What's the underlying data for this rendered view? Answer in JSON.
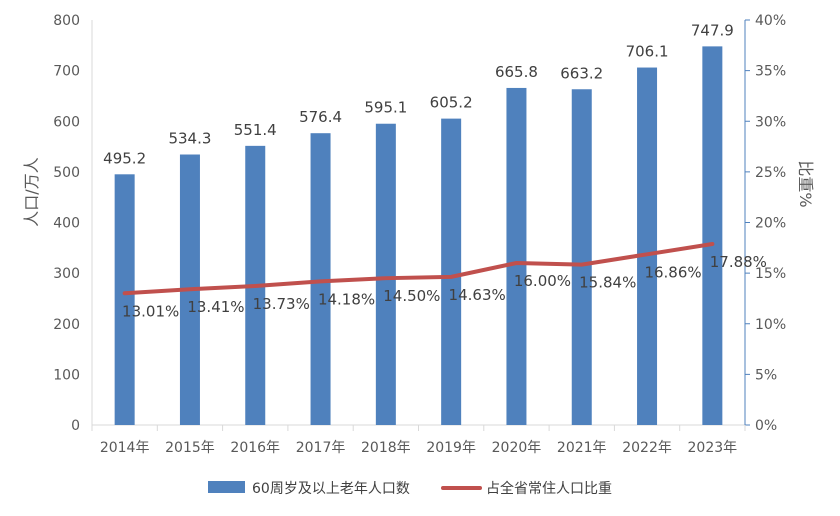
{
  "chart_data": {
    "type": "bar",
    "categories": [
      "2014年",
      "2015年",
      "2016年",
      "2017年",
      "2018年",
      "2019年",
      "2020年",
      "2021年",
      "2022年",
      "2023年"
    ],
    "series": [
      {
        "name": "60周岁及以上老年人口数",
        "type": "bar",
        "axis": "left",
        "color": "#4F81BD",
        "values": [
          495.2,
          534.3,
          551.4,
          576.4,
          595.1,
          605.2,
          665.8,
          663.2,
          706.1,
          747.9
        ],
        "labels": [
          "495.2",
          "534.3",
          "551.4",
          "576.4",
          "595.1",
          "605.2",
          "665.8",
          "663.2",
          "706.1",
          "747.9"
        ]
      },
      {
        "name": "占全省常住人口比重",
        "type": "line",
        "axis": "right",
        "color": "#C0504D",
        "values": [
          13.01,
          13.41,
          13.73,
          14.18,
          14.5,
          14.63,
          16.0,
          15.84,
          16.86,
          17.88
        ],
        "labels": [
          "13.01%",
          "13.41%",
          "13.73%",
          "14.18%",
          "14.50%",
          "14.63%",
          "16.00%",
          "15.84%",
          "16.86%",
          "17.88%"
        ]
      }
    ],
    "left_axis": {
      "label": "人口/万人",
      "ylim": [
        0,
        800
      ],
      "ticks": [
        0,
        100,
        200,
        300,
        400,
        500,
        600,
        700,
        800
      ],
      "tick_labels": [
        "0",
        "100",
        "200",
        "300",
        "400",
        "500",
        "600",
        "700",
        "800"
      ]
    },
    "right_axis": {
      "label": "比重%",
      "ylim": [
        0,
        40
      ],
      "ticks": [
        0,
        5,
        10,
        15,
        20,
        25,
        30,
        35,
        40
      ],
      "tick_labels": [
        "0%",
        "5%",
        "10%",
        "15%",
        "20%",
        "25%",
        "30%",
        "35%",
        "40%"
      ]
    },
    "grid": false,
    "legend_position": "bottom"
  }
}
